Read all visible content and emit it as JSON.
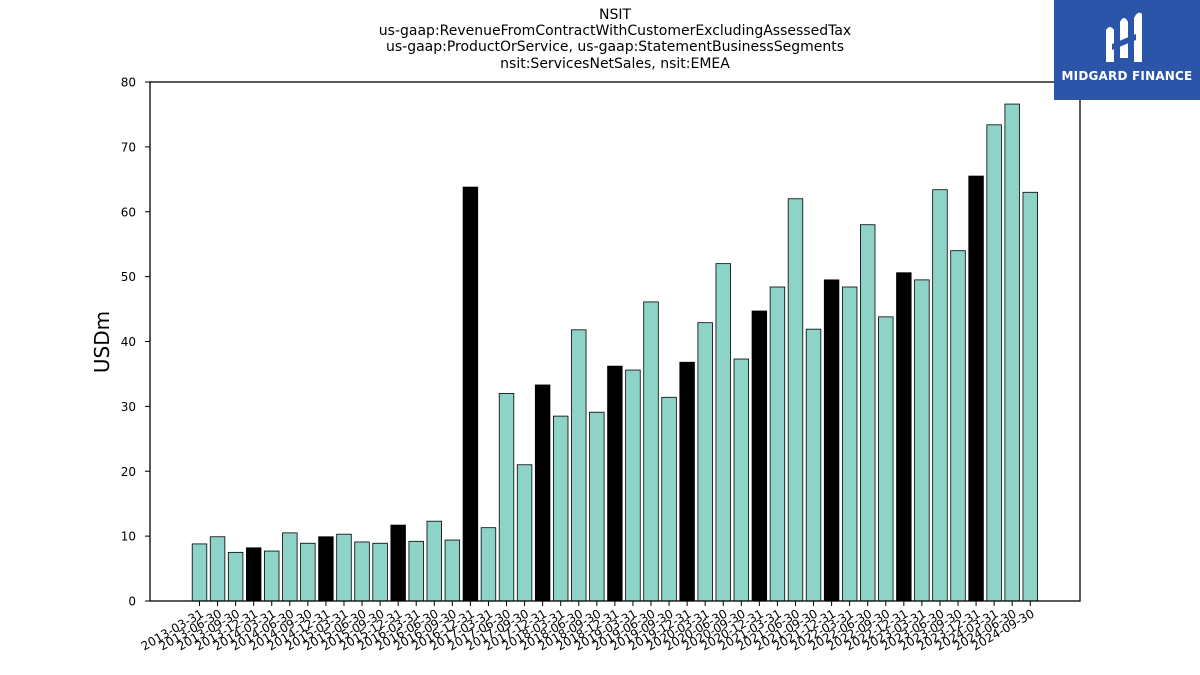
{
  "brand": {
    "name": "MIDGARD FINANCE",
    "color": "#2a55a8"
  },
  "colors": {
    "bar_normal": "#8dd3c7",
    "bar_highlight": "#000000",
    "edge": "#000000"
  },
  "chart_data": {
    "type": "bar",
    "title_lines": [
      "NSIT",
      "us-gaap:RevenueFromContractWithCustomerExcludingAssessedTax",
      "us-gaap:ProductOrService, us-gaap:StatementBusinessSegments",
      "nsit:ServicesNetSales, nsit:EMEA"
    ],
    "ylabel": "USDm",
    "xlabel": "",
    "ylim": [
      0,
      80
    ],
    "yticks": [
      0,
      10,
      20,
      30,
      40,
      50,
      60,
      70,
      80
    ],
    "grid": false,
    "categories": [
      "2013-03-31",
      "2013-06-30",
      "2013-09-30",
      "2013-12-31",
      "2014-03-31",
      "2014-06-30",
      "2014-09-30",
      "2014-12-31",
      "2015-03-31",
      "2015-06-30",
      "2015-09-30",
      "2015-12-31",
      "2016-03-31",
      "2016-06-30",
      "2016-09-30",
      "2016-12-31",
      "2017-03-31",
      "2017-06-30",
      "2017-09-30",
      "2017-12-31",
      "2018-03-31",
      "2018-06-30",
      "2018-09-30",
      "2018-12-31",
      "2019-03-31",
      "2019-06-30",
      "2019-09-30",
      "2019-12-31",
      "2020-03-31",
      "2020-06-30",
      "2020-09-30",
      "2020-12-31",
      "2021-03-31",
      "2021-06-30",
      "2021-09-30",
      "2021-12-31",
      "2022-03-31",
      "2022-06-30",
      "2022-09-30",
      "2022-12-31",
      "2023-03-31",
      "2023-06-30",
      "2023-09-30",
      "2023-12-31",
      "2024-03-31",
      "2024-06-30",
      "2024-09-30"
    ],
    "values": [
      8.8,
      9.9,
      7.5,
      8.2,
      7.7,
      10.5,
      8.9,
      9.9,
      10.3,
      9.1,
      8.9,
      11.7,
      9.2,
      12.3,
      9.4,
      63.8,
      11.3,
      32.0,
      21.0,
      33.3,
      28.5,
      41.8,
      29.1,
      36.2,
      35.6,
      46.1,
      31.4,
      36.8,
      42.9,
      52.0,
      37.3,
      44.7,
      48.4,
      62.0,
      41.9,
      49.5,
      48.4,
      58.0,
      43.8,
      50.6,
      49.5,
      63.4,
      54.0,
      65.5,
      73.4,
      76.6,
      63.0
    ],
    "highlight": [
      false,
      false,
      false,
      true,
      false,
      false,
      false,
      true,
      false,
      false,
      false,
      true,
      false,
      false,
      false,
      true,
      false,
      false,
      false,
      true,
      false,
      false,
      false,
      true,
      false,
      false,
      false,
      true,
      false,
      false,
      false,
      true,
      false,
      false,
      false,
      true,
      false,
      false,
      false,
      true,
      false,
      false,
      false,
      true,
      false,
      false,
      false
    ]
  }
}
